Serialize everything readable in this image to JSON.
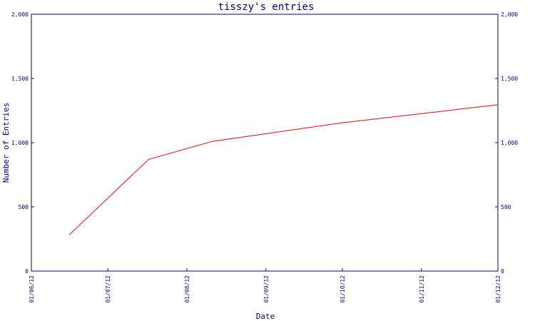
{
  "chart_data": {
    "type": "line",
    "title": "tisszy's entries",
    "xlabel": "Date",
    "ylabel": "Number of Entries",
    "x_ticks": [
      "01/06/12",
      "01/07/12",
      "01/08/12",
      "01/09/12",
      "01/10/12",
      "01/11/12",
      "01/12/12"
    ],
    "y_ticks": [
      "0",
      "500",
      "1,000",
      "1,500",
      "2,000"
    ],
    "y_tick_values": [
      0,
      500,
      1000,
      1500,
      2000
    ],
    "ylim": [
      0,
      2000
    ],
    "xlim": [
      "2012-06-01",
      "2012-12-01"
    ],
    "series": [
      {
        "values": [
          {
            "x": "2012-06-16",
            "y": 285
          },
          {
            "x": "2012-07-17",
            "y": 870
          },
          {
            "x": "2012-08-11",
            "y": 1010
          },
          {
            "x": "2012-10-01",
            "y": 1155
          },
          {
            "x": "2012-12-01",
            "y": 1295
          }
        ],
        "color": "#ff0000"
      }
    ],
    "right_axis": true,
    "grid": false,
    "axis_color": "#000080",
    "line_color": "#ff0000"
  }
}
